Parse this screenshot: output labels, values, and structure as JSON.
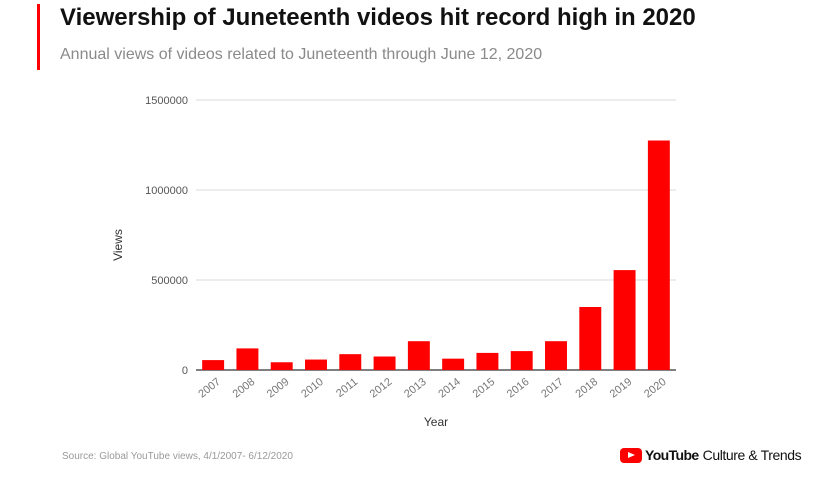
{
  "header": {
    "title": "Viewership of Juneteenth videos hit record high in 2020",
    "subtitle": "Annual views of videos related to Juneteenth through June 12, 2020"
  },
  "footer": {
    "source": "Source: Global YouTube views, 4/1/2007- 6/12/2020",
    "brand_name": "YouTube",
    "brand_suffix": "Culture & Trends"
  },
  "colors": {
    "accent": "#ff0000",
    "bar": "#ff0000",
    "grid": "#d9d9d9"
  },
  "chart_data": {
    "type": "bar",
    "xlabel": "Year",
    "ylabel": "Views",
    "ylim": [
      0,
      1500000
    ],
    "yticks": [
      0,
      500000,
      1000000,
      1500000
    ],
    "grid": true,
    "categories": [
      "2007",
      "2008",
      "2009",
      "2010",
      "2011",
      "2012",
      "2013",
      "2014",
      "2015",
      "2016",
      "2017",
      "2018",
      "2019",
      "2020"
    ],
    "values": [
      55000,
      120000,
      43000,
      58000,
      88000,
      75000,
      160000,
      63000,
      95000,
      105000,
      160000,
      350000,
      555000,
      1275000
    ]
  }
}
